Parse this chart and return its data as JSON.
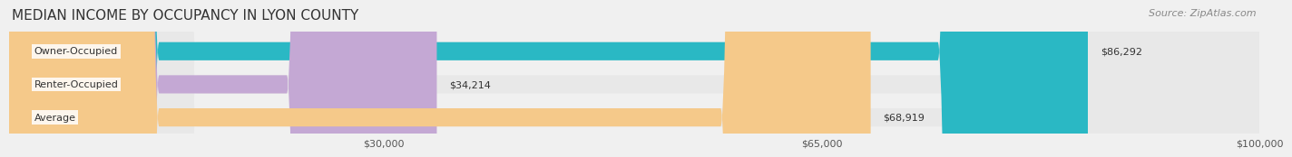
{
  "title": "MEDIAN INCOME BY OCCUPANCY IN LYON COUNTY",
  "source": "Source: ZipAtlas.com",
  "categories": [
    "Owner-Occupied",
    "Renter-Occupied",
    "Average"
  ],
  "values": [
    86292,
    34214,
    68919
  ],
  "labels": [
    "$86,292",
    "$34,214",
    "$68,919"
  ],
  "bar_colors": [
    "#2ab8c4",
    "#c4a8d4",
    "#f5c98a"
  ],
  "bar_edge_colors": [
    "#2ab8c4",
    "#c4a8d4",
    "#f5c98a"
  ],
  "xlim": [
    0,
    100000
  ],
  "xticks": [
    30000,
    65000,
    100000
  ],
  "xticklabels": [
    "$30,000",
    "$65,000",
    "$100,000"
  ],
  "title_fontsize": 11,
  "source_fontsize": 8,
  "label_fontsize": 8,
  "category_fontsize": 8,
  "background_color": "#f0f0f0",
  "bar_bg_color": "#e8e8e8"
}
